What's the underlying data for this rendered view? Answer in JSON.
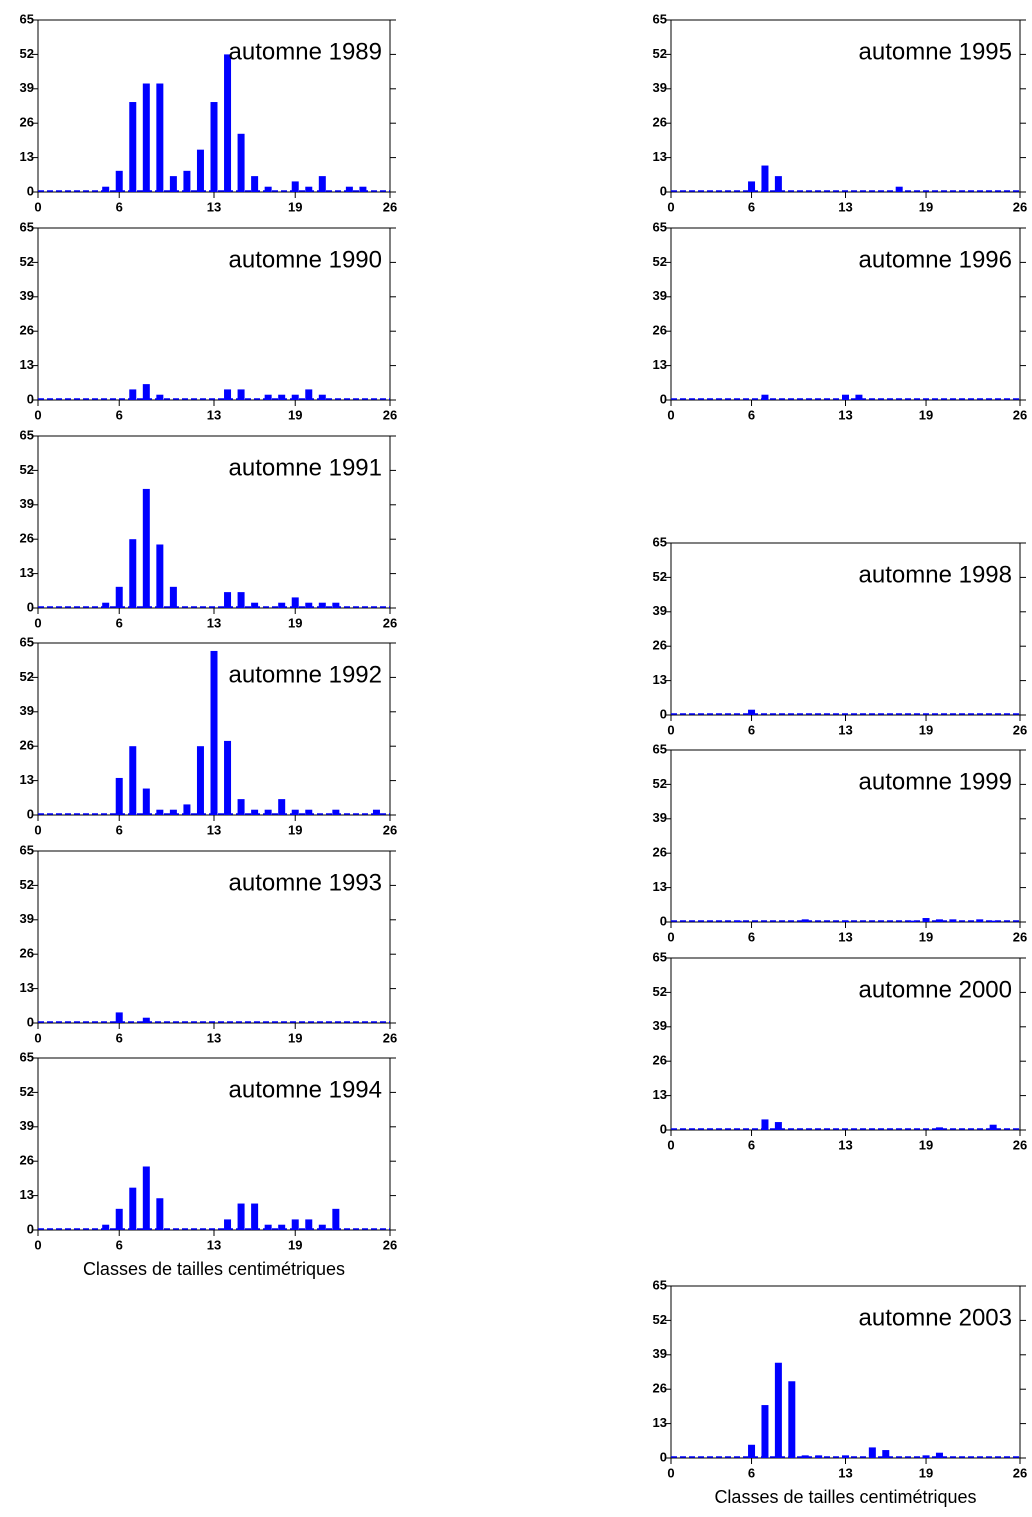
{
  "chart_data": [
    {
      "type": "bar",
      "title": "automne 1989",
      "x": [
        0,
        1,
        2,
        3,
        4,
        5,
        6,
        7,
        8,
        9,
        10,
        11,
        12,
        13,
        14,
        15,
        16,
        17,
        18,
        19,
        20,
        21,
        22,
        23,
        24,
        25
      ],
      "values": [
        0,
        0,
        0,
        0,
        0,
        2,
        8,
        34,
        41,
        41,
        6,
        8,
        16,
        34,
        52,
        22,
        6,
        2,
        0,
        4,
        2,
        6,
        0,
        2,
        2,
        0
      ],
      "color": "#0000ff",
      "xlim": [
        0,
        26
      ],
      "ylim": [
        0,
        65
      ],
      "xticks": [
        0,
        6,
        13,
        19,
        26
      ],
      "yticks": [
        0,
        13,
        26,
        39,
        52,
        65
      ]
    },
    {
      "type": "bar",
      "title": "automne 1990",
      "x": [
        0,
        1,
        2,
        3,
        4,
        5,
        6,
        7,
        8,
        9,
        10,
        11,
        12,
        13,
        14,
        15,
        16,
        17,
        18,
        19,
        20,
        21,
        22,
        23,
        24,
        25
      ],
      "values": [
        0,
        0,
        0,
        0,
        0,
        0,
        0,
        4,
        6,
        2,
        0,
        0,
        0,
        0,
        4,
        4,
        0,
        2,
        2,
        2,
        4,
        2,
        0,
        0,
        0,
        0
      ],
      "color": "#0000ff",
      "xlim": [
        0,
        26
      ],
      "ylim": [
        0,
        65
      ],
      "xticks": [
        0,
        6,
        13,
        19,
        26
      ],
      "yticks": [
        0,
        13,
        26,
        39,
        52,
        65
      ]
    },
    {
      "type": "bar",
      "title": "automne 1991",
      "x": [
        0,
        1,
        2,
        3,
        4,
        5,
        6,
        7,
        8,
        9,
        10,
        11,
        12,
        13,
        14,
        15,
        16,
        17,
        18,
        19,
        20,
        21,
        22,
        23,
        24,
        25
      ],
      "values": [
        0,
        0,
        0,
        0,
        0,
        2,
        8,
        26,
        45,
        24,
        8,
        0,
        0,
        0,
        6,
        6,
        2,
        0,
        2,
        4,
        2,
        2,
        2,
        0,
        0,
        0
      ],
      "color": "#0000ff",
      "xlim": [
        0,
        26
      ],
      "ylim": [
        0,
        65
      ],
      "xticks": [
        0,
        6,
        13,
        19,
        26
      ],
      "yticks": [
        0,
        13,
        26,
        39,
        52,
        65
      ]
    },
    {
      "type": "bar",
      "title": "automne 1992",
      "x": [
        0,
        1,
        2,
        3,
        4,
        5,
        6,
        7,
        8,
        9,
        10,
        11,
        12,
        13,
        14,
        15,
        16,
        17,
        18,
        19,
        20,
        21,
        22,
        23,
        24,
        25
      ],
      "values": [
        0,
        0,
        0,
        0,
        0,
        0,
        14,
        26,
        10,
        2,
        2,
        4,
        26,
        62,
        28,
        6,
        2,
        2,
        6,
        2,
        2,
        0,
        2,
        0,
        0,
        2
      ],
      "color": "#0000ff",
      "xlim": [
        0,
        26
      ],
      "ylim": [
        0,
        65
      ],
      "xticks": [
        0,
        6,
        13,
        19,
        26
      ],
      "yticks": [
        0,
        13,
        26,
        39,
        52,
        65
      ]
    },
    {
      "type": "bar",
      "title": "automne 1993",
      "x": [
        0,
        1,
        2,
        3,
        4,
        5,
        6,
        7,
        8,
        9,
        10,
        11,
        12,
        13,
        14,
        15,
        16,
        17,
        18,
        19,
        20,
        21,
        22,
        23,
        24,
        25
      ],
      "values": [
        0,
        0,
        0,
        0,
        0,
        0,
        4,
        0,
        2,
        0,
        0,
        0,
        0,
        0,
        0,
        0,
        0,
        0,
        0,
        0,
        0,
        0,
        0,
        0,
        0,
        0
      ],
      "color": "#0000ff",
      "xlim": [
        0,
        26
      ],
      "ylim": [
        0,
        65
      ],
      "xticks": [
        0,
        6,
        13,
        19,
        26
      ],
      "yticks": [
        0,
        13,
        26,
        39,
        52,
        65
      ]
    },
    {
      "type": "bar",
      "title": "automne 1994",
      "xlabel": "Classes de tailles centimétriques",
      "x": [
        0,
        1,
        2,
        3,
        4,
        5,
        6,
        7,
        8,
        9,
        10,
        11,
        12,
        13,
        14,
        15,
        16,
        17,
        18,
        19,
        20,
        21,
        22,
        23,
        24,
        25
      ],
      "values": [
        0,
        0,
        0,
        0,
        0,
        2,
        8,
        16,
        24,
        12,
        0,
        0,
        0,
        0,
        4,
        10,
        10,
        2,
        2,
        4,
        4,
        2,
        8,
        0,
        0,
        0
      ],
      "color": "#0000ff",
      "xlim": [
        0,
        26
      ],
      "ylim": [
        0,
        65
      ],
      "xticks": [
        0,
        6,
        13,
        19,
        26
      ],
      "yticks": [
        0,
        13,
        26,
        39,
        52,
        65
      ]
    },
    {
      "type": "bar",
      "title": "automne 1995",
      "x": [
        0,
        1,
        2,
        3,
        4,
        5,
        6,
        7,
        8,
        9,
        10,
        11,
        12,
        13,
        14,
        15,
        16,
        17,
        18,
        19,
        20,
        21,
        22,
        23,
        24,
        25
      ],
      "values": [
        0,
        0,
        0,
        0,
        0,
        0,
        4,
        10,
        6,
        0,
        0,
        0,
        0,
        0,
        0,
        0,
        0,
        2,
        0,
        0,
        0,
        0,
        0,
        0,
        0,
        0
      ],
      "color": "#0000ff",
      "xlim": [
        0,
        26
      ],
      "ylim": [
        0,
        65
      ],
      "xticks": [
        0,
        6,
        13,
        19,
        26
      ],
      "yticks": [
        0,
        13,
        26,
        39,
        52,
        65
      ]
    },
    {
      "type": "bar",
      "title": "automne 1996",
      "x": [
        0,
        1,
        2,
        3,
        4,
        5,
        6,
        7,
        8,
        9,
        10,
        11,
        12,
        13,
        14,
        15,
        16,
        17,
        18,
        19,
        20,
        21,
        22,
        23,
        24,
        25
      ],
      "values": [
        0,
        0,
        0,
        0,
        0,
        0,
        0,
        2,
        0,
        0,
        0,
        0,
        0,
        2,
        2,
        0,
        0,
        0,
        0,
        0,
        0,
        0,
        0,
        0,
        0,
        0
      ],
      "color": "#0000ff",
      "xlim": [
        0,
        26
      ],
      "ylim": [
        0,
        65
      ],
      "xticks": [
        0,
        6,
        13,
        19,
        26
      ],
      "yticks": [
        0,
        13,
        26,
        39,
        52,
        65
      ]
    },
    {
      "type": "bar",
      "title": "automne 1998",
      "x": [
        0,
        1,
        2,
        3,
        4,
        5,
        6,
        7,
        8,
        9,
        10,
        11,
        12,
        13,
        14,
        15,
        16,
        17,
        18,
        19,
        20,
        21,
        22,
        23,
        24,
        25
      ],
      "values": [
        0,
        0,
        0,
        0,
        0,
        0,
        2,
        0,
        0,
        0,
        0,
        0,
        0,
        0,
        0,
        0,
        0,
        0,
        0,
        0,
        0,
        0,
        0,
        0,
        0,
        0
      ],
      "color": "#0000ff",
      "xlim": [
        0,
        26
      ],
      "ylim": [
        0,
        65
      ],
      "xticks": [
        0,
        6,
        13,
        19,
        26
      ],
      "yticks": [
        0,
        13,
        26,
        39,
        52,
        65
      ]
    },
    {
      "type": "bar",
      "title": "automne 1999",
      "x": [
        0,
        1,
        2,
        3,
        4,
        5,
        6,
        7,
        8,
        9,
        10,
        11,
        12,
        13,
        14,
        15,
        16,
        17,
        18,
        19,
        20,
        21,
        22,
        23,
        24,
        25
      ],
      "values": [
        0,
        0,
        0,
        0,
        0,
        0.5,
        0,
        0,
        0,
        0,
        1,
        0,
        0,
        0.5,
        0,
        0,
        0,
        0,
        0.5,
        1.5,
        1,
        1,
        0,
        1,
        0.5,
        0
      ],
      "color": "#0000ff",
      "xlim": [
        0,
        26
      ],
      "ylim": [
        0,
        65
      ],
      "xticks": [
        0,
        6,
        13,
        19,
        26
      ],
      "yticks": [
        0,
        13,
        26,
        39,
        52,
        65
      ]
    },
    {
      "type": "bar",
      "title": "automne 2000",
      "x": [
        0,
        1,
        2,
        3,
        4,
        5,
        6,
        7,
        8,
        9,
        10,
        11,
        12,
        13,
        14,
        15,
        16,
        17,
        18,
        19,
        20,
        21,
        22,
        23,
        24,
        25
      ],
      "values": [
        0,
        0,
        0,
        0,
        0,
        0,
        0,
        4,
        3,
        0,
        0,
        0,
        0,
        0,
        0,
        0,
        0,
        0,
        0,
        0,
        1,
        0,
        0,
        0,
        2,
        0
      ],
      "color": "#0000ff",
      "xlim": [
        0,
        26
      ],
      "ylim": [
        0,
        65
      ],
      "xticks": [
        0,
        6,
        13,
        19,
        26
      ],
      "yticks": [
        0,
        13,
        26,
        39,
        52,
        65
      ]
    },
    {
      "type": "bar",
      "title": "automne 2003",
      "xlabel": "Classes de tailles centimétriques",
      "x": [
        0,
        1,
        2,
        3,
        4,
        5,
        6,
        7,
        8,
        9,
        10,
        11,
        12,
        13,
        14,
        15,
        16,
        17,
        18,
        19,
        20,
        21,
        22,
        23,
        24,
        25
      ],
      "values": [
        0,
        0,
        0,
        0,
        0,
        0,
        5,
        20,
        36,
        29,
        1,
        1,
        0,
        1,
        0,
        4,
        3,
        0,
        0,
        1,
        2,
        0,
        0,
        0,
        0,
        0
      ],
      "color": "#0000ff",
      "xlim": [
        0,
        26
      ],
      "ylim": [
        0,
        65
      ],
      "xticks": [
        0,
        6,
        13,
        19,
        26
      ],
      "yticks": [
        0,
        13,
        26,
        39,
        52,
        65
      ]
    }
  ]
}
